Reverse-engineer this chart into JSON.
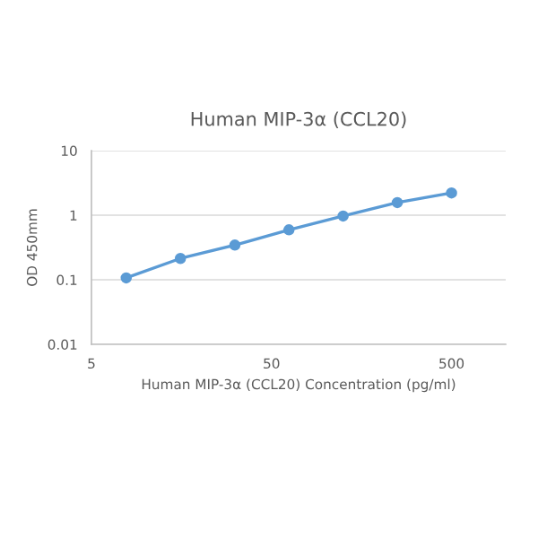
{
  "chart_data": {
    "type": "line",
    "title": "Human MIP-3α (CCL20)",
    "xlabel": "Human MIP-3α (CCL20) Concentration (pg/ml)",
    "ylabel": "OD 450mm",
    "x": [
      7.8,
      15.6,
      31.3,
      62.5,
      125,
      250,
      500
    ],
    "series": [
      {
        "color": "#5b9bd5",
        "values": [
          0.107,
          0.214,
          0.344,
          0.593,
          0.97,
          1.57,
          2.21
        ]
      }
    ],
    "log": "xy",
    "xlim": [
      5,
      1000
    ],
    "ylim": [
      0.01,
      10
    ],
    "xticks": [
      5,
      50,
      500
    ],
    "yticks": [
      0.01,
      0.1,
      1,
      10
    ],
    "grid": "y",
    "marker": "circle",
    "line_style": "solid",
    "legend": false
  }
}
